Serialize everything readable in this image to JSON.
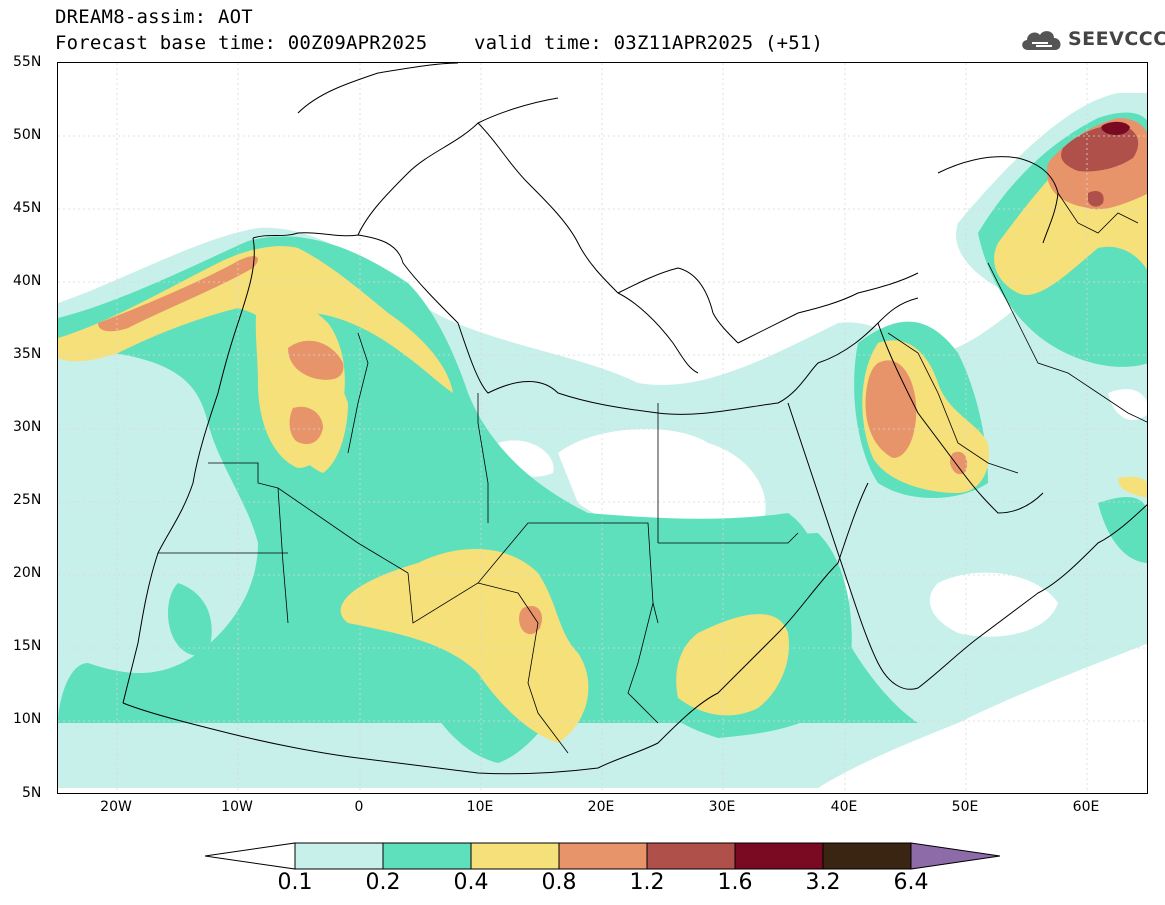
{
  "header": {
    "title_line1": "DREAM8-assim: AOT",
    "title_line2": "Forecast base time: 00Z09APR2025    valid time: 03Z11APR2025 (+51)"
  },
  "logo": {
    "text": "SEEVCCC",
    "icon": "cloud-icon"
  },
  "map": {
    "lat_labels": [
      "55N",
      "50N",
      "45N",
      "40N",
      "35N",
      "30N",
      "25N",
      "20N",
      "15N",
      "10N",
      "5N"
    ],
    "lon_labels": [
      "20W",
      "10W",
      "0",
      "10E",
      "20E",
      "30E",
      "40E",
      "50E",
      "60E"
    ],
    "variable": "AOT",
    "region": "North Africa, Europe and Middle East"
  },
  "colorbar": {
    "labels": [
      "0.1",
      "0.2",
      "0.4",
      "0.8",
      "1.2",
      "1.6",
      "3.2",
      "6.4"
    ],
    "colors": [
      "#ffffff",
      "#c8f0ea",
      "#5ee0bc",
      "#f6e07a",
      "#e8946a",
      "#b0504a",
      "#7a0a22",
      "#3a2412",
      "#8d6aa8"
    ]
  }
}
